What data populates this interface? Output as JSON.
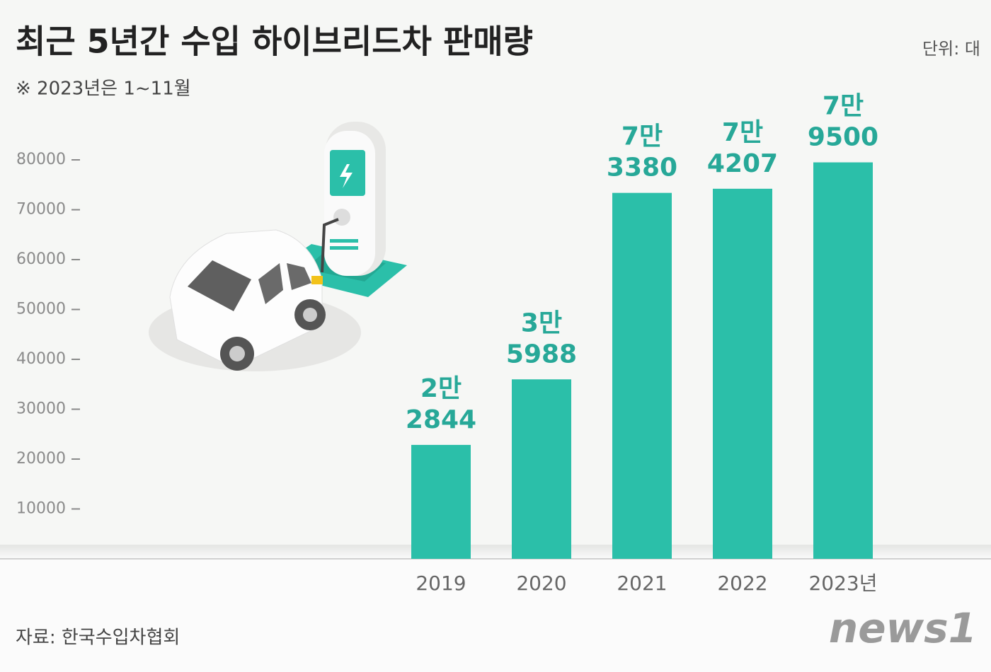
{
  "chart_data": {
    "type": "bar",
    "title": "최근 5년간 수입 하이브리드차 판매량",
    "subtitle": "※ 2023년은 1~11월",
    "unit": "단위: 대",
    "source": "자료: 한국수입차협회",
    "logo": "news1",
    "categories": [
      "2019",
      "2020",
      "2021",
      "2022",
      "2023년"
    ],
    "values": [
      22844,
      35988,
      73380,
      74207,
      79500
    ],
    "value_labels": [
      "2만\n2844",
      "3만\n5988",
      "7만\n3380",
      "7만\n4207",
      "7만\n9500"
    ],
    "color": "#2bbfa9",
    "ylim": [
      0,
      80000
    ],
    "yticks": [
      10000,
      20000,
      30000,
      40000,
      50000,
      60000,
      70000,
      80000
    ]
  }
}
